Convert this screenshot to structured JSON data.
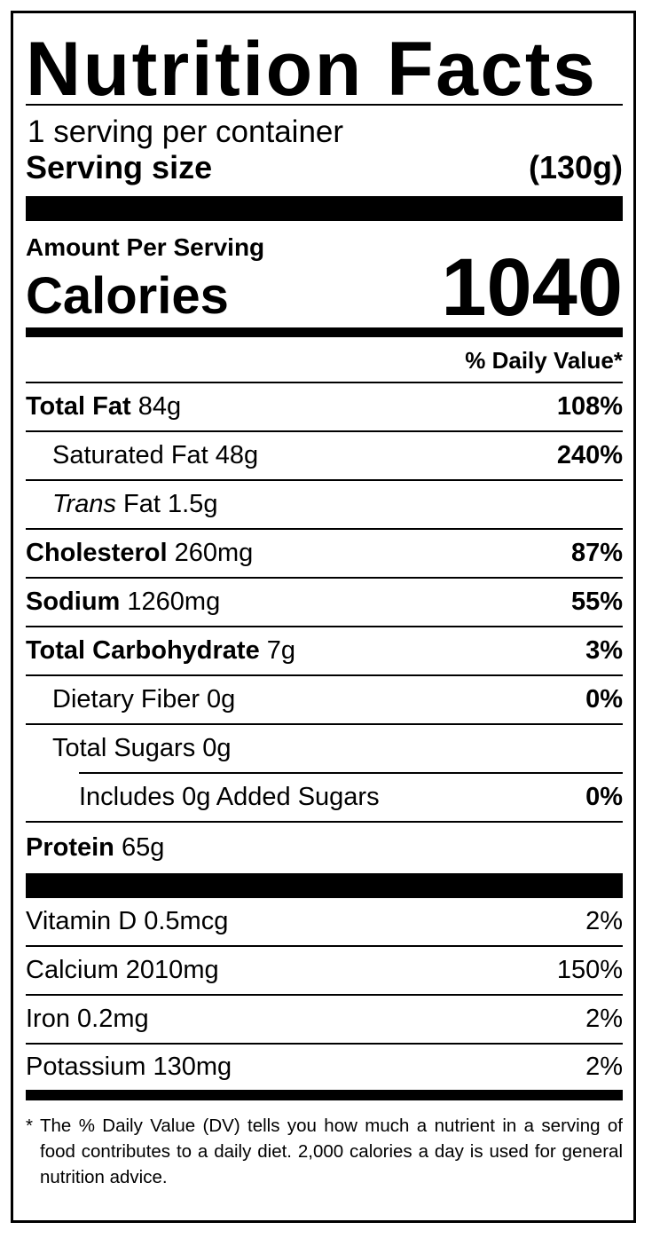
{
  "title": "Nutrition Facts",
  "servings_per_container": "1 serving per container",
  "serving_size": {
    "label": "Serving size",
    "value": "(130g)"
  },
  "amount_per_serving": "Amount Per Serving",
  "calories": {
    "label": "Calories",
    "value": "1040"
  },
  "daily_value_header": "% Daily Value*",
  "nutrients": [
    {
      "name": "Total Fat",
      "amount": " 84g",
      "dv": "108%"
    },
    {
      "name": "Saturated Fat 48g",
      "dv": "240%"
    },
    {
      "name_italic": "Trans",
      "name": " Fat 1.5g",
      "dv": ""
    },
    {
      "name": "Cholesterol",
      "amount": " 260mg",
      "dv": "87%"
    },
    {
      "name": "Sodium",
      "amount": " 1260mg",
      "dv": "55%"
    },
    {
      "name": "Total Carbohydrate",
      "amount": " 7g",
      "dv": "3%"
    },
    {
      "name": "Dietary Fiber 0g",
      "dv": "0%"
    },
    {
      "name": "Total Sugars 0g",
      "dv": ""
    },
    {
      "name": "Includes 0g Added Sugars",
      "dv": "0%"
    },
    {
      "name": "Protein",
      "amount": " 65g",
      "dv": ""
    }
  ],
  "vitamins": [
    {
      "name": "Vitamin D 0.5mcg",
      "dv": "2%"
    },
    {
      "name": "Calcium 2010mg",
      "dv": "150%"
    },
    {
      "name": "Iron 0.2mg",
      "dv": "2%"
    },
    {
      "name": "Potassium 130mg",
      "dv": "2%"
    }
  ],
  "footnote": "* The % Daily Value (DV) tells you how much a nutrient in a serving of food contributes to a daily diet. 2,000 calories a day is used for general nutrition advice."
}
